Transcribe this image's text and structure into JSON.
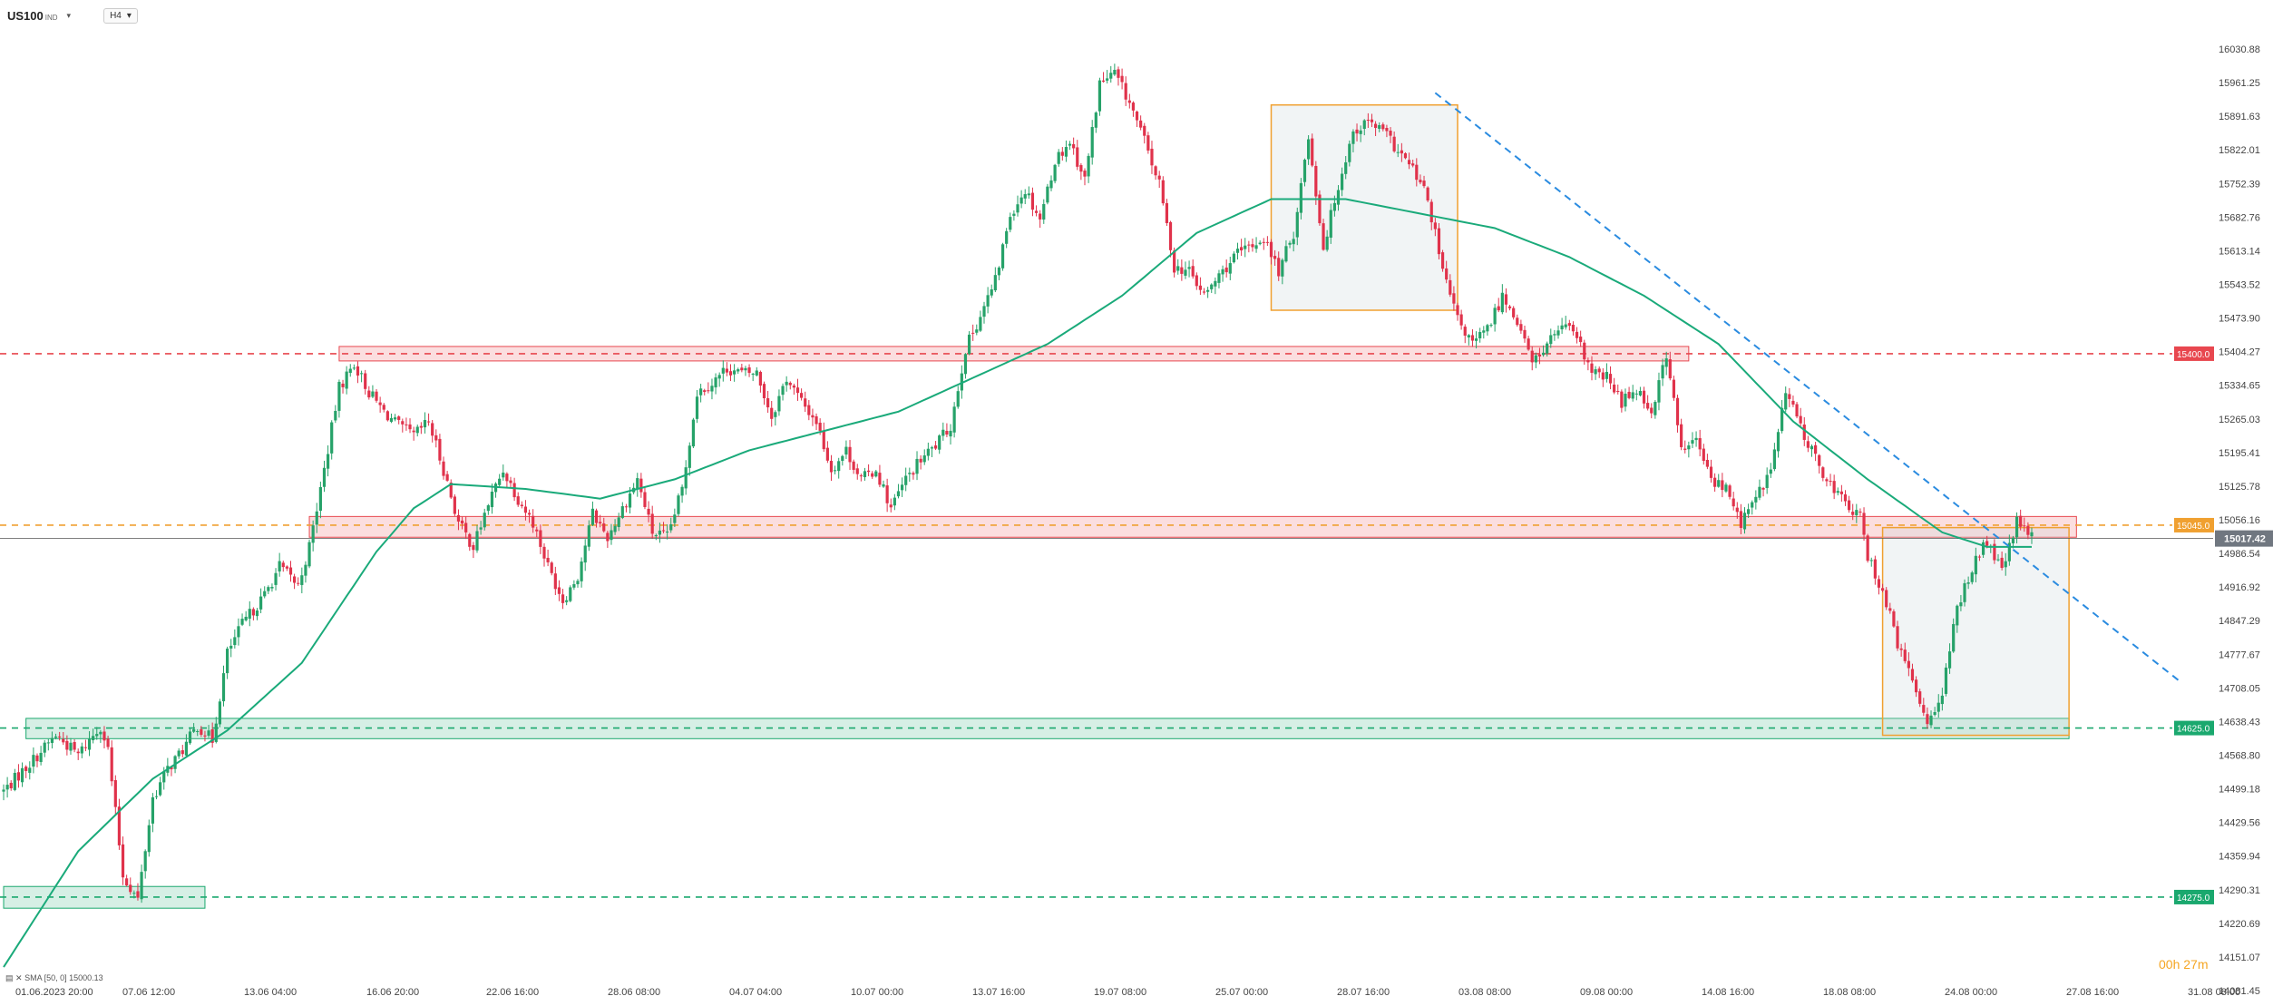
{
  "header": {
    "symbol": "US100",
    "symbol_suffix": "IND",
    "timeframe": "H4"
  },
  "indicator_label": "SMA [50, 0] 15000.13",
  "timer": "00h 27m",
  "colors": {
    "bull": "#26a269",
    "bear": "#e0324b",
    "sma": "#1aaa7a",
    "resistance": "#e8474f",
    "support": "#1aa86e",
    "current": "#f0a030",
    "trend": "#2a8be0",
    "pricebox": "#707780"
  },
  "chart_data": {
    "type": "candlestick",
    "title": "",
    "x_tick_labels": [
      "01.06.2023 20:00",
      "07.06 12:00",
      "13.06 04:00",
      "16.06 20:00",
      "22.06 16:00",
      "28.06 08:00",
      "04.07 04:00",
      "10.07 00:00",
      "13.07 16:00",
      "19.07 08:00",
      "25.07 00:00",
      "28.07 16:00",
      "03.08 08:00",
      "09.08 00:00",
      "14.08 16:00",
      "18.08 08:00",
      "24.08 00:00",
      "27.08 16:00",
      "31.08 08:00"
    ],
    "y_ticks": [
      16030.88,
      15961.25,
      15891.63,
      15822.01,
      15752.39,
      15682.76,
      15613.14,
      15543.52,
      15473.9,
      15404.27,
      15334.65,
      15265.03,
      15195.41,
      15125.78,
      15056.16,
      14986.54,
      14916.92,
      14847.29,
      14777.67,
      14708.05,
      14638.43,
      14568.8,
      14499.18,
      14429.56,
      14359.94,
      14290.31,
      14220.69,
      14151.07,
      14081.45
    ],
    "ylim": [
      14081.45,
      16100
    ],
    "key_levels": [
      {
        "label": "15400.0",
        "value": 15400.0,
        "kind": "resistance"
      },
      {
        "label": "15045.0",
        "value": 15045.0,
        "kind": "current"
      },
      {
        "label": "14625.0",
        "value": 14625.0,
        "kind": "support"
      },
      {
        "label": "14275.0",
        "value": 14275.0,
        "kind": "support"
      }
    ],
    "current_price": {
      "label": "15017.42",
      "value": 15017.42
    },
    "sma": {
      "name": "SMA [50, 0]",
      "period": 50,
      "last": 15000.13
    },
    "anchors": [
      [
        0,
        14495
      ],
      [
        8,
        14560
      ],
      [
        14,
        14610
      ],
      [
        20,
        14570
      ],
      [
        26,
        14630
      ],
      [
        28,
        14580
      ],
      [
        32,
        14320
      ],
      [
        36,
        14270
      ],
      [
        40,
        14480
      ],
      [
        44,
        14540
      ],
      [
        48,
        14580
      ],
      [
        52,
        14630
      ],
      [
        56,
        14600
      ],
      [
        60,
        14780
      ],
      [
        64,
        14840
      ],
      [
        70,
        14900
      ],
      [
        74,
        14960
      ],
      [
        79,
        14920
      ],
      [
        82,
        15000
      ],
      [
        86,
        15160
      ],
      [
        90,
        15330
      ],
      [
        94,
        15380
      ],
      [
        98,
        15320
      ],
      [
        102,
        15280
      ],
      [
        106,
        15250
      ],
      [
        110,
        15230
      ],
      [
        114,
        15260
      ],
      [
        118,
        15160
      ],
      [
        122,
        15050
      ],
      [
        126,
        15000
      ],
      [
        130,
        15090
      ],
      [
        134,
        15160
      ],
      [
        138,
        15100
      ],
      [
        142,
        15050
      ],
      [
        146,
        14960
      ],
      [
        150,
        14890
      ],
      [
        154,
        14940
      ],
      [
        158,
        15070
      ],
      [
        162,
        15020
      ],
      [
        166,
        15080
      ],
      [
        170,
        15140
      ],
      [
        174,
        15030
      ],
      [
        178,
        15020
      ],
      [
        182,
        15120
      ],
      [
        186,
        15320
      ],
      [
        190,
        15340
      ],
      [
        194,
        15370
      ],
      [
        198,
        15360
      ],
      [
        202,
        15360
      ],
      [
        206,
        15270
      ],
      [
        210,
        15350
      ],
      [
        214,
        15300
      ],
      [
        218,
        15260
      ],
      [
        222,
        15160
      ],
      [
        226,
        15200
      ],
      [
        230,
        15140
      ],
      [
        234,
        15160
      ],
      [
        238,
        15080
      ],
      [
        242,
        15140
      ],
      [
        246,
        15180
      ],
      [
        250,
        15210
      ],
      [
        254,
        15250
      ],
      [
        258,
        15410
      ],
      [
        262,
        15480
      ],
      [
        266,
        15550
      ],
      [
        270,
        15690
      ],
      [
        274,
        15740
      ],
      [
        278,
        15680
      ],
      [
        282,
        15800
      ],
      [
        286,
        15840
      ],
      [
        290,
        15760
      ],
      [
        294,
        15960
      ],
      [
        298,
        15980
      ],
      [
        302,
        15920
      ],
      [
        306,
        15840
      ],
      [
        310,
        15750
      ],
      [
        314,
        15580
      ],
      [
        318,
        15570
      ],
      [
        322,
        15520
      ],
      [
        326,
        15560
      ],
      [
        330,
        15600
      ],
      [
        334,
        15620
      ],
      [
        338,
        15640
      ],
      [
        342,
        15570
      ],
      [
        346,
        15650
      ],
      [
        350,
        15850
      ],
      [
        354,
        15620
      ],
      [
        358,
        15750
      ],
      [
        362,
        15860
      ],
      [
        366,
        15880
      ],
      [
        370,
        15860
      ],
      [
        374,
        15820
      ],
      [
        378,
        15780
      ],
      [
        382,
        15720
      ],
      [
        386,
        15570
      ],
      [
        390,
        15470
      ],
      [
        394,
        15420
      ],
      [
        398,
        15450
      ],
      [
        402,
        15520
      ],
      [
        406,
        15470
      ],
      [
        410,
        15380
      ],
      [
        414,
        15420
      ],
      [
        418,
        15460
      ],
      [
        422,
        15430
      ],
      [
        426,
        15360
      ],
      [
        430,
        15350
      ],
      [
        434,
        15300
      ],
      [
        438,
        15330
      ],
      [
        442,
        15280
      ],
      [
        446,
        15400
      ],
      [
        450,
        15200
      ],
      [
        454,
        15220
      ],
      [
        458,
        15140
      ],
      [
        462,
        15120
      ],
      [
        466,
        15050
      ],
      [
        470,
        15100
      ],
      [
        474,
        15160
      ],
      [
        478,
        15320
      ],
      [
        482,
        15250
      ],
      [
        486,
        15180
      ],
      [
        490,
        15130
      ],
      [
        494,
        15090
      ],
      [
        498,
        15060
      ],
      [
        500,
        14980
      ],
      [
        504,
        14910
      ],
      [
        508,
        14800
      ],
      [
        512,
        14720
      ],
      [
        516,
        14640
      ],
      [
        520,
        14700
      ],
      [
        524,
        14870
      ],
      [
        528,
        14960
      ],
      [
        532,
        15010
      ],
      [
        536,
        14950
      ],
      [
        540,
        15050
      ],
      [
        544,
        15020
      ]
    ],
    "sma_anchors": [
      [
        0,
        14130
      ],
      [
        20,
        14370
      ],
      [
        40,
        14520
      ],
      [
        60,
        14620
      ],
      [
        80,
        14760
      ],
      [
        100,
        14990
      ],
      [
        110,
        15080
      ],
      [
        120,
        15130
      ],
      [
        140,
        15120
      ],
      [
        160,
        15100
      ],
      [
        180,
        15140
      ],
      [
        200,
        15200
      ],
      [
        220,
        15240
      ],
      [
        240,
        15280
      ],
      [
        260,
        15350
      ],
      [
        280,
        15420
      ],
      [
        300,
        15520
      ],
      [
        320,
        15650
      ],
      [
        340,
        15720
      ],
      [
        360,
        15720
      ],
      [
        380,
        15690
      ],
      [
        400,
        15660
      ],
      [
        420,
        15600
      ],
      [
        440,
        15520
      ],
      [
        460,
        15420
      ],
      [
        480,
        15260
      ],
      [
        500,
        15140
      ],
      [
        520,
        15030
      ],
      [
        532,
        15000
      ],
      [
        544,
        15000
      ]
    ],
    "drawings": {
      "zones": [
        {
          "kind": "resistance",
          "x_from": 90,
          "x_to": 452,
          "y_low": 15385,
          "y_high": 15415
        },
        {
          "kind": "resistance",
          "x_from": 82,
          "x_to": 556,
          "y_low": 15020,
          "y_high": 15063
        },
        {
          "kind": "support",
          "x_from": 6,
          "x_to": 554,
          "y_low": 14603,
          "y_high": 14645
        },
        {
          "kind": "support",
          "x_from": 0,
          "x_to": 54,
          "y_low": 14252,
          "y_high": 14297
        }
      ],
      "boxes": [
        {
          "x_from": 340,
          "x_to": 390,
          "y_low": 15490,
          "y_high": 15915
        },
        {
          "x_from": 504,
          "x_to": 554,
          "y_low": 14610,
          "y_high": 15040
        }
      ],
      "trendline": {
        "x_from": 384,
        "y_from": 15940,
        "x_to": 584,
        "y_to": 14720
      }
    }
  }
}
